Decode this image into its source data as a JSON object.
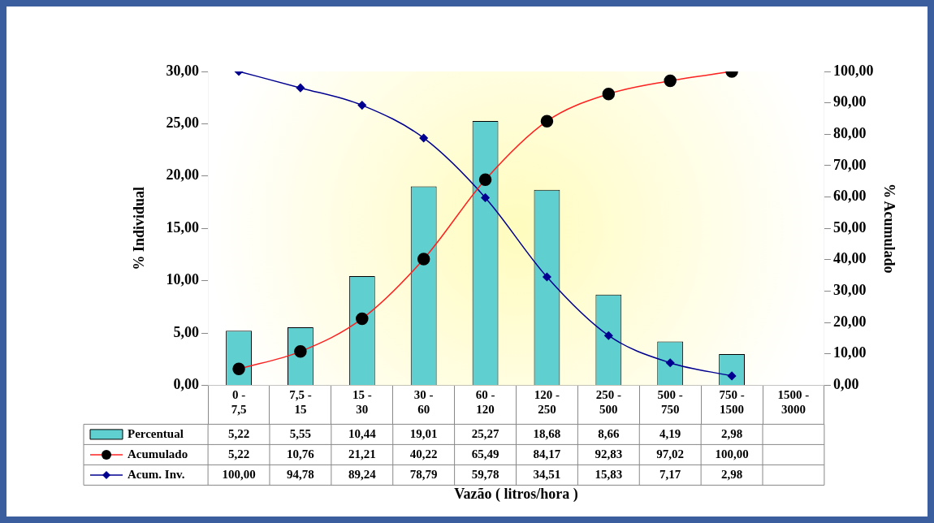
{
  "chart_data": {
    "type": "bar",
    "xlabel": "Vazão ( litros/hora )",
    "ylabel": "% Individual",
    "y2label": "% Acumulado",
    "legend": "bottom left",
    "data_labels": true,
    "categories": [
      "0 - 7,5",
      "7,5 - 15",
      "15 - 30",
      "30 - 60",
      "60 - 120",
      "120 - 250",
      "250 - 500",
      "500 - 750",
      "750 - 1500",
      "1500 - 3000"
    ],
    "ylim": [
      0,
      30
    ],
    "yticks": [
      {
        "value": 0,
        "label": "0,00"
      },
      {
        "value": 5,
        "label": "5,00"
      },
      {
        "value": 10,
        "label": "10,00"
      },
      {
        "value": 15,
        "label": "15,00"
      },
      {
        "value": 20,
        "label": "20,00"
      },
      {
        "value": 25,
        "label": "25,00"
      },
      {
        "value": 30,
        "label": "30,00"
      }
    ],
    "y2lim": [
      0,
      100
    ],
    "y2ticks": [
      {
        "value": 0,
        "label": "0,00"
      },
      {
        "value": 10,
        "label": "10,00"
      },
      {
        "value": 20,
        "label": "20,00"
      },
      {
        "value": 30,
        "label": "30,00"
      },
      {
        "value": 40,
        "label": "40,00"
      },
      {
        "value": 50,
        "label": "50,00"
      },
      {
        "value": 60,
        "label": "60,00"
      },
      {
        "value": 70,
        "label": "70,00"
      },
      {
        "value": 80,
        "label": "80,00"
      },
      {
        "value": 90,
        "label": "90,00"
      },
      {
        "value": 100,
        "label": "100,00"
      }
    ],
    "series": [
      {
        "name": "Percentual",
        "color": "#5fcfcf",
        "values": [
          5.22,
          5.55,
          10.44,
          19.01,
          25.27,
          18.68,
          8.66,
          4.19,
          2.98,
          null
        ],
        "value_labels": [
          "5,22",
          "5,55",
          "10,44",
          "19,01",
          "25,27",
          "18,68",
          "8,66",
          "4,19",
          "2,98",
          null
        ]
      },
      {
        "name": "Acumulado",
        "type": "line",
        "axis": "y2",
        "color": "#ff2020",
        "marker": "circle",
        "values": [
          5.22,
          10.76,
          21.21,
          40.22,
          65.49,
          84.17,
          92.83,
          97.02,
          100.0,
          null
        ],
        "value_labels": [
          "5,22",
          "10,76",
          "21,21",
          "40,22",
          "65,49",
          "84,17",
          "92,83",
          "97,02",
          "100,00",
          null
        ]
      },
      {
        "name": "Acum. Inv.",
        "type": "line",
        "axis": "y2",
        "color": "#000090",
        "marker": "diamond",
        "values": [
          100.0,
          94.78,
          89.24,
          78.79,
          59.78,
          34.51,
          15.83,
          7.17,
          2.98,
          null
        ],
        "value_labels": [
          "100,00",
          "94,78",
          "89,24",
          "78,79",
          "59,78",
          "34,51",
          "15,83",
          "7,17",
          "2,98",
          null
        ]
      }
    ]
  }
}
